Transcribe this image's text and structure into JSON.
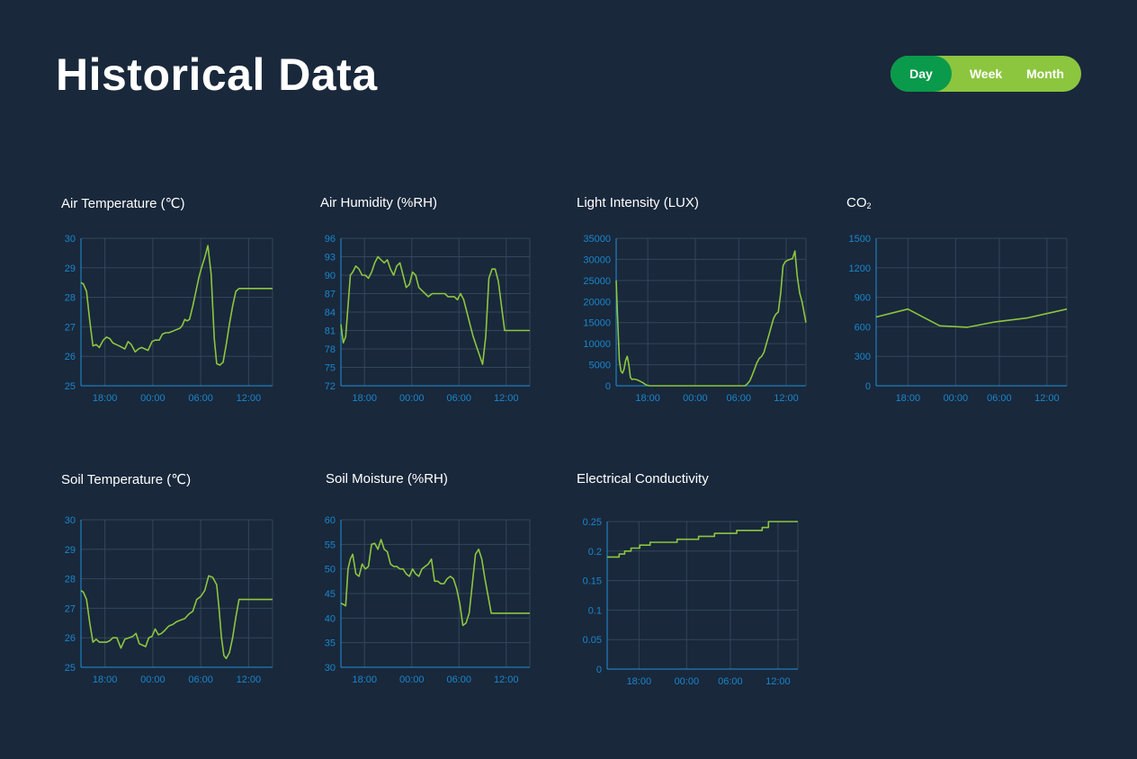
{
  "page": {
    "title": "Historical Data"
  },
  "range_toggle": {
    "options": [
      "Day",
      "Week",
      "Month"
    ],
    "selected": "Day"
  },
  "colors": {
    "background": "#19283b",
    "line": "#8cc63f",
    "axis": "#1f8fd8",
    "tick_text": "#1a86cc",
    "grid": "#34465a",
    "toggle_active": "#0a9a4b",
    "toggle_track": "#8cc63f"
  },
  "chart_data": [
    {
      "id": "air-temperature",
      "type": "line",
      "title": "Air Temperature (℃)",
      "xlabel": "",
      "ylabel": "",
      "ylim": [
        25,
        30
      ],
      "yticks": [
        25,
        26,
        27,
        28,
        29,
        30
      ],
      "xlim": [
        0,
        24
      ],
      "xticks": [
        3,
        9,
        15,
        21
      ],
      "xtick_labels": [
        "18:00",
        "00:00",
        "06:00",
        "12:00"
      ],
      "grid": true,
      "series": [
        {
          "x": [
            0,
            0.3,
            0.7,
            1.1,
            1.5,
            1.9,
            2.3,
            2.8,
            3.2,
            3.6,
            4.0,
            4.8,
            5.5,
            5.9,
            6.3,
            6.8,
            7.2,
            7.6,
            8.0,
            8.4,
            8.9,
            9.3,
            9.8,
            10.2,
            10.6,
            11.0,
            11.5,
            11.9,
            12.4,
            12.7,
            13.0,
            13.3,
            13.6,
            14.0,
            14.4,
            14.8,
            15.1,
            15.5,
            15.9,
            16.3,
            16.7,
            17.0,
            17.4,
            17.8,
            18.2,
            18.6,
            19.0,
            19.4,
            19.8,
            20.2,
            20.6,
            21.0,
            21.4,
            21.8,
            22.2,
            22.7,
            23.1,
            23.5,
            24
          ],
          "y": [
            28.5,
            28.45,
            28.2,
            27.2,
            26.35,
            26.4,
            26.3,
            26.55,
            26.65,
            26.6,
            26.45,
            26.35,
            26.25,
            26.5,
            26.4,
            26.15,
            26.25,
            26.3,
            26.25,
            26.2,
            26.5,
            26.55,
            26.55,
            26.75,
            26.8,
            26.8,
            26.85,
            26.9,
            26.95,
            27.05,
            27.25,
            27.2,
            27.25,
            27.7,
            28.2,
            28.7,
            29.0,
            29.35,
            29.75,
            28.8,
            26.6,
            25.75,
            25.7,
            25.8,
            26.4,
            27.1,
            27.7,
            28.2,
            28.3,
            28.3,
            28.3,
            28.3,
            28.3,
            28.3,
            28.3,
            28.3,
            28.3,
            28.3,
            28.3
          ]
        }
      ]
    },
    {
      "id": "air-humidity",
      "type": "line",
      "title": "Air Humidity (%RH)",
      "xlabel": "",
      "ylabel": "",
      "ylim": [
        72,
        96
      ],
      "yticks": [
        72,
        75,
        78,
        81,
        84,
        87,
        90,
        93,
        96
      ],
      "xlim": [
        0,
        24
      ],
      "xticks": [
        3,
        9,
        15,
        21
      ],
      "xtick_labels": [
        "18:00",
        "00:00",
        "06:00",
        "12:00"
      ],
      "grid": true,
      "series": [
        {
          "x": [
            0,
            0.3,
            0.6,
            0.9,
            1.2,
            1.5,
            1.9,
            2.3,
            2.7,
            3.1,
            3.5,
            3.9,
            4.3,
            4.7,
            5.1,
            5.5,
            5.9,
            6.3,
            6.7,
            7.1,
            7.5,
            7.9,
            8.3,
            8.7,
            9.1,
            9.5,
            9.9,
            10.3,
            10.7,
            11.1,
            11.6,
            12.0,
            12.4,
            12.8,
            13.2,
            13.6,
            14.0,
            14.4,
            14.8,
            15.2,
            15.6,
            16.0,
            16.4,
            16.8,
            17.2,
            17.6,
            18.0,
            18.4,
            18.8,
            19.2,
            19.6,
            20.0,
            20.4,
            20.8,
            21.2,
            21.6,
            22.0,
            22.4,
            22.8,
            23.2,
            23.6,
            24
          ],
          "y": [
            82,
            79,
            80,
            85,
            90,
            90.5,
            91.5,
            91,
            90,
            90,
            89.5,
            90.5,
            92,
            93,
            92.5,
            92,
            92.5,
            91,
            90,
            91.5,
            92,
            90,
            88,
            88.5,
            90.5,
            90,
            88,
            87.5,
            87,
            86.5,
            87,
            87,
            87,
            87,
            87,
            86.5,
            86.5,
            86.5,
            86,
            87,
            86,
            84,
            82,
            80,
            78.5,
            77,
            75.5,
            80,
            89.5,
            91,
            91,
            89,
            85,
            81,
            81,
            81,
            81,
            81,
            81,
            81,
            81,
            81
          ]
        }
      ]
    },
    {
      "id": "light-intensity",
      "type": "line",
      "title": "Light Intensity (LUX)",
      "xlabel": "",
      "ylabel": "",
      "ylim": [
        0,
        35000
      ],
      "yticks": [
        0,
        5000,
        10000,
        15000,
        20000,
        25000,
        30000,
        35000
      ],
      "xlim": [
        0,
        24
      ],
      "xticks": [
        4,
        10,
        15.5,
        21.5
      ],
      "xtick_labels": [
        "18:00",
        "00:00",
        "06:00",
        "12:00"
      ],
      "grid": true,
      "series": [
        {
          "x": [
            0,
            0.2,
            0.4,
            0.6,
            0.8,
            1.0,
            1.2,
            1.4,
            1.6,
            1.8,
            2.0,
            2.2,
            2.5,
            2.8,
            3.1,
            3.4,
            3.8,
            4.2,
            4.6,
            5.0,
            6,
            7,
            8,
            9,
            10,
            11,
            12,
            13,
            14,
            14.5,
            15,
            15.5,
            16,
            16.3,
            16.6,
            16.9,
            17.2,
            17.5,
            17.8,
            18.1,
            18.4,
            18.7,
            19.0,
            19.3,
            19.6,
            19.9,
            20.2,
            20.5,
            20.8,
            21.1,
            21.4,
            21.7,
            22.0,
            22.3,
            22.6,
            22.9,
            23.2,
            23.5,
            23.8,
            24
          ],
          "y": [
            25000,
            15000,
            6000,
            3500,
            3000,
            4000,
            6000,
            7000,
            5000,
            2000,
            1500,
            1600,
            1500,
            1300,
            1000,
            700,
            200,
            0,
            0,
            0,
            0,
            0,
            0,
            0,
            0,
            0,
            0,
            0,
            0,
            0,
            0,
            0,
            0,
            0,
            500,
            1200,
            2500,
            4000,
            5500,
            6500,
            7000,
            8000,
            10000,
            12000,
            14000,
            16000,
            17000,
            17500,
            22000,
            28500,
            29500,
            29800,
            30000,
            30200,
            32000,
            26000,
            22000,
            20000,
            17000,
            15000
          ]
        }
      ]
    },
    {
      "id": "co2",
      "type": "line",
      "title": "CO",
      "title_subscript": "2",
      "xlabel": "",
      "ylabel": "",
      "ylim": [
        0,
        1500
      ],
      "yticks": [
        0,
        300,
        600,
        900,
        1200,
        1500
      ],
      "xlim": [
        0,
        24
      ],
      "xticks": [
        4,
        10,
        15.5,
        21.5
      ],
      "xtick_labels": [
        "18:00",
        "00:00",
        "06:00",
        "12:00"
      ],
      "grid": true,
      "series": [
        {
          "x": [
            0,
            4,
            8,
            11.5,
            15,
            19,
            24
          ],
          "y": [
            700,
            780,
            610,
            595,
            650,
            690,
            780
          ]
        }
      ]
    },
    {
      "id": "soil-temperature",
      "type": "line",
      "title": "Soil Temperature (℃)",
      "xlabel": "",
      "ylabel": "",
      "ylim": [
        25,
        30
      ],
      "yticks": [
        25,
        26,
        27,
        28,
        29,
        30
      ],
      "xlim": [
        0,
        24
      ],
      "xticks": [
        3,
        9,
        15,
        21
      ],
      "xtick_labels": [
        "18:00",
        "00:00",
        "06:00",
        "12:00"
      ],
      "grid": true,
      "series": [
        {
          "x": [
            0,
            0.3,
            0.7,
            1.1,
            1.5,
            1.9,
            2.3,
            2.8,
            3.2,
            3.6,
            4.0,
            4.5,
            5.0,
            5.5,
            6.0,
            6.5,
            6.9,
            7.3,
            7.7,
            8.1,
            8.5,
            8.9,
            9.3,
            9.7,
            10.1,
            10.5,
            11.0,
            11.5,
            12.0,
            12.5,
            13.0,
            13.5,
            14.0,
            14.5,
            15.0,
            15.5,
            16.0,
            16.5,
            17.0,
            17.3,
            17.6,
            17.9,
            18.2,
            18.6,
            19.0,
            19.4,
            19.8,
            20.2,
            20.6,
            21.0,
            21.4,
            21.8,
            22.2,
            22.7,
            23.1,
            23.6,
            24
          ],
          "y": [
            27.6,
            27.55,
            27.3,
            26.5,
            25.85,
            25.95,
            25.85,
            25.85,
            25.85,
            25.9,
            26.0,
            26.0,
            25.65,
            25.95,
            26.0,
            26.05,
            26.15,
            25.8,
            25.75,
            25.7,
            26.0,
            26.05,
            26.3,
            26.1,
            26.15,
            26.25,
            26.4,
            26.45,
            26.55,
            26.6,
            26.65,
            26.8,
            26.9,
            27.3,
            27.4,
            27.6,
            28.1,
            28.05,
            27.8,
            27.0,
            26.0,
            25.4,
            25.3,
            25.5,
            26.0,
            26.7,
            27.3,
            27.3,
            27.3,
            27.3,
            27.3,
            27.3,
            27.3,
            27.3,
            27.3,
            27.3,
            27.3
          ]
        }
      ]
    },
    {
      "id": "soil-moisture",
      "type": "line",
      "title": "Soil Moisture (%RH)",
      "xlabel": "",
      "ylabel": "",
      "ylim": [
        30,
        60
      ],
      "yticks": [
        30,
        35,
        40,
        45,
        50,
        55,
        60
      ],
      "xlim": [
        0,
        24
      ],
      "xticks": [
        3,
        9,
        15,
        21
      ],
      "xtick_labels": [
        "18:00",
        "00:00",
        "06:00",
        "12:00"
      ],
      "grid": true,
      "series": [
        {
          "x": [
            0,
            0.3,
            0.6,
            0.9,
            1.2,
            1.5,
            1.9,
            2.3,
            2.7,
            3.1,
            3.5,
            3.9,
            4.3,
            4.7,
            5.1,
            5.5,
            5.9,
            6.3,
            6.7,
            7.1,
            7.5,
            7.9,
            8.3,
            8.7,
            9.1,
            9.5,
            9.9,
            10.3,
            10.7,
            11.1,
            11.5,
            11.9,
            12.3,
            12.7,
            13.1,
            13.5,
            13.9,
            14.3,
            14.7,
            15.1,
            15.5,
            15.9,
            16.3,
            16.7,
            17.1,
            17.5,
            17.9,
            18.3,
            18.7,
            19.1,
            19.5,
            19.9,
            20.3,
            20.7,
            21.1,
            21.5,
            21.9,
            22.3,
            22.7,
            23.1,
            23.5,
            24
          ],
          "y": [
            43,
            42.8,
            42.5,
            50,
            52,
            53,
            49,
            48.5,
            51,
            50,
            50.5,
            55,
            55.2,
            54,
            56,
            54,
            53.5,
            51,
            50.5,
            50.5,
            50,
            50,
            49,
            48.5,
            50,
            49,
            48.5,
            50,
            50.5,
            51,
            52,
            47.5,
            47.5,
            47,
            47,
            48,
            48.5,
            48,
            46,
            43,
            38.5,
            39,
            41,
            47,
            53,
            54,
            52,
            48,
            44.5,
            41,
            41,
            41,
            41,
            41,
            41,
            41,
            41,
            41,
            41,
            41,
            41,
            41
          ]
        }
      ]
    },
    {
      "id": "electrical-conductivity",
      "type": "line",
      "title": "Electrical Conductivity",
      "xlabel": "",
      "ylabel": "",
      "ylim": [
        0,
        0.25
      ],
      "yticks": [
        0,
        0.05,
        0.1,
        0.15,
        0.2,
        0.25
      ],
      "xlim": [
        0,
        24
      ],
      "xticks": [
        4,
        10,
        15.5,
        21.5
      ],
      "xtick_labels": [
        "18:00",
        "00:00",
        "06:00",
        "12:00"
      ],
      "grid": true,
      "series": [
        {
          "x": [
            0,
            1.5,
            1.5,
            2.2,
            2.2,
            3.0,
            3.0,
            4.1,
            4.1,
            5.4,
            5.4,
            8.8,
            8.8,
            11.5,
            11.5,
            13.5,
            13.5,
            16.3,
            16.3,
            19.5,
            19.5,
            20.3,
            20.3,
            24
          ],
          "y": [
            0.19,
            0.19,
            0.195,
            0.195,
            0.2,
            0.2,
            0.205,
            0.205,
            0.21,
            0.21,
            0.215,
            0.215,
            0.22,
            0.22,
            0.225,
            0.225,
            0.23,
            0.23,
            0.235,
            0.235,
            0.24,
            0.24,
            0.25,
            0.25
          ]
        }
      ]
    }
  ]
}
